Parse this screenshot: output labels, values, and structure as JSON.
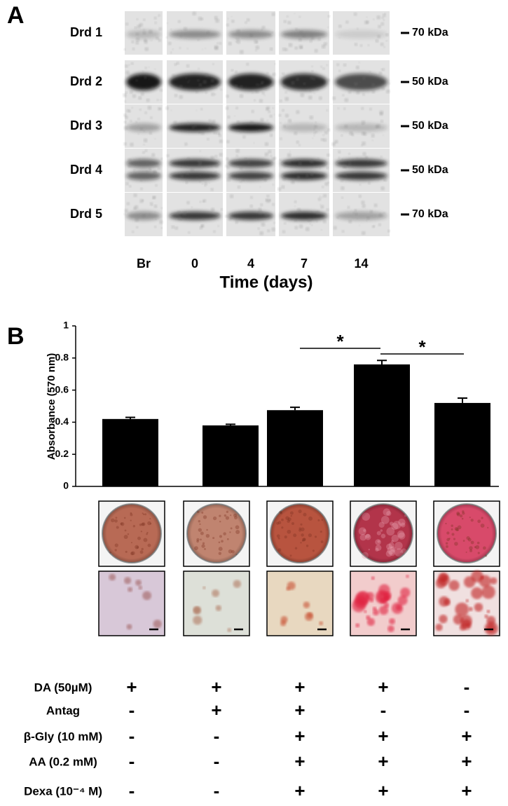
{
  "panel_a": {
    "label": "A",
    "rows": [
      {
        "name": "Drd 1",
        "marker": "70 kDa"
      },
      {
        "name": "Drd 2",
        "marker": "50 kDa"
      },
      {
        "name": "Drd 3",
        "marker": "50 kDa"
      },
      {
        "name": "Drd 4",
        "marker": "50 kDa"
      },
      {
        "name": "Drd 5",
        "marker": "70 kDa"
      }
    ],
    "lanes": [
      "Br",
      "0",
      "4",
      "7",
      "14"
    ],
    "xlabel": "Time (days)"
  },
  "chart_data": {
    "type": "bar",
    "panel_label": "B",
    "ylabel": "Absorbance (570 nm)",
    "values": [
      0.42,
      0.38,
      0.475,
      0.76,
      0.52
    ],
    "errors": [
      0.01,
      0.007,
      0.018,
      0.025,
      0.03
    ],
    "color": "#000000",
    "ylim": [
      0,
      1
    ],
    "yticks": [
      0,
      0.2,
      0.4,
      0.6,
      0.8,
      1
    ],
    "annotations": [
      "*",
      "*"
    ]
  },
  "treatments": {
    "rows": [
      {
        "label": "DA (50µM)",
        "signs": [
          "+",
          "+",
          "+",
          "+",
          "-"
        ]
      },
      {
        "label": "Antag",
        "signs": [
          "-",
          "+",
          "+",
          "-",
          "-"
        ]
      },
      {
        "label": "β-Gly (10 mM)",
        "signs": [
          "-",
          "-",
          "+",
          "+",
          "+"
        ]
      },
      {
        "label": "AA (0.2 mM)",
        "signs": [
          "-",
          "-",
          "+",
          "+",
          "+"
        ]
      },
      {
        "label": "Dexa (10⁻⁴ M)",
        "signs": [
          "-",
          "-",
          "+",
          "+",
          "+"
        ]
      }
    ]
  }
}
